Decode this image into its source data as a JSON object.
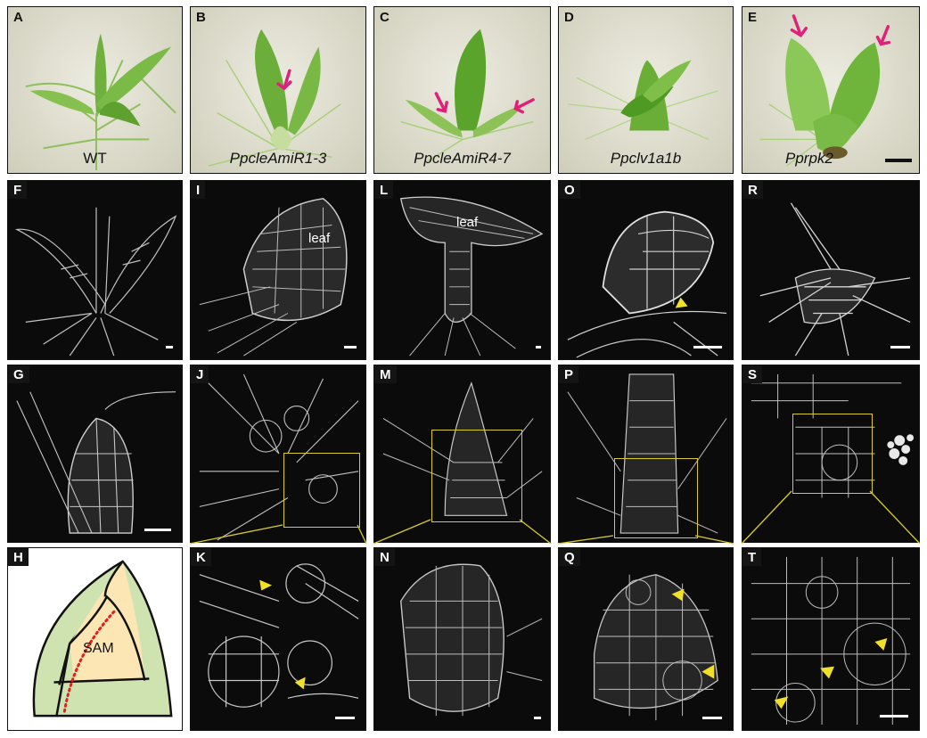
{
  "panels": {
    "A": {
      "letter": "A",
      "caption": "WT"
    },
    "B": {
      "letter": "B",
      "caption": "PpcleAmiR1-3"
    },
    "C": {
      "letter": "C",
      "caption": "PpcleAmiR4-7"
    },
    "D": {
      "letter": "D",
      "caption": "Ppclv1a1b"
    },
    "E": {
      "letter": "E",
      "caption": "Pprpk2"
    },
    "F": {
      "letter": "F"
    },
    "G": {
      "letter": "G"
    },
    "H": {
      "letter": "H",
      "sam_label": "SAM"
    },
    "I": {
      "letter": "I",
      "label": "leaf"
    },
    "J": {
      "letter": "J"
    },
    "K": {
      "letter": "K"
    },
    "L": {
      "letter": "L",
      "label": "leaf"
    },
    "M": {
      "letter": "M"
    },
    "N": {
      "letter": "N"
    },
    "O": {
      "letter": "O"
    },
    "P": {
      "letter": "P"
    },
    "Q": {
      "letter": "Q"
    },
    "R": {
      "letter": "R"
    },
    "S": {
      "letter": "S"
    },
    "T": {
      "letter": "T"
    }
  },
  "colors": {
    "arrow_magenta": "#e0207a",
    "arrowhead_yellow": "#f0e028",
    "zoom_box": "#d9cc2a",
    "diagram_green": "#cfe3b0",
    "diagram_sam": "#fbe6b4",
    "diagram_dotted": "#e02020"
  }
}
